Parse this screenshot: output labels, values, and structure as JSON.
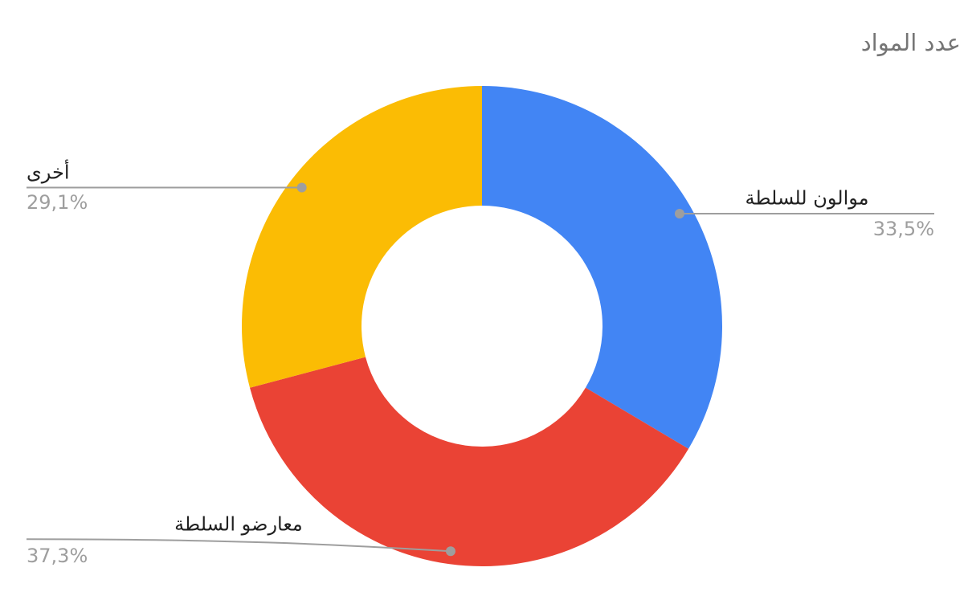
{
  "page": {
    "background": "#ffffff"
  },
  "chart_data": {
    "type": "pie",
    "subtype": "donut",
    "title": "عدد المواد",
    "categories": [
      "موالون للسلطة",
      "معارضو السلطة",
      "أخرى"
    ],
    "values": [
      33.5,
      37.3,
      29.1
    ],
    "percent_labels": [
      "33,5%",
      "37,3%",
      "29,1%"
    ],
    "colors": [
      "#4285F4",
      "#EA4335",
      "#FBBC04"
    ],
    "label_sides": [
      "right",
      "bottom-left",
      "left"
    ],
    "start_angle_deg": 0,
    "clockwise": true,
    "hole_ratio": 0.5,
    "legend_position": "outside-labels",
    "title_color": "#757575",
    "label_color": "#212121",
    "percent_color": "#9e9e9e",
    "leader_color": "#9e9e9e"
  }
}
